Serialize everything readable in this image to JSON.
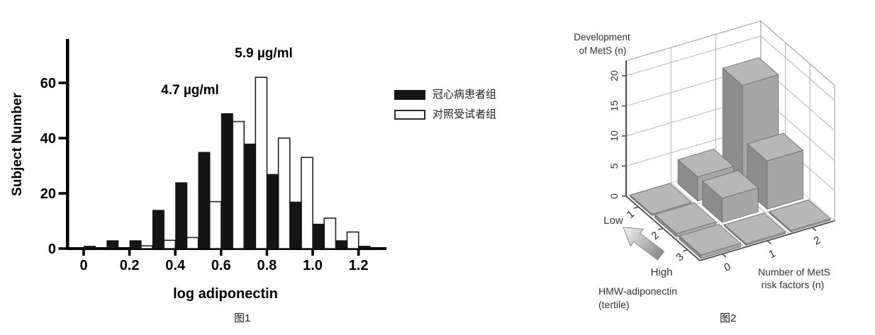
{
  "page": {
    "background": "#ffffff"
  },
  "chart_data": [
    {
      "type": "bar",
      "subtype": "grouped-histogram",
      "title": "",
      "xlabel": "log adiponectin",
      "ylabel": "Subject Number",
      "caption": "图1",
      "bin_start": 0.0,
      "bin_width": 0.1,
      "xticks": [
        "0",
        "0.2",
        "0.4",
        "0.6",
        "0.8",
        "1.0",
        "1.2"
      ],
      "xtick_values": [
        0,
        0.2,
        0.4,
        0.6,
        0.8,
        1.0,
        1.2
      ],
      "yticks": [
        "0",
        "20",
        "40",
        "60"
      ],
      "ytick_values": [
        0,
        20,
        40,
        60
      ],
      "ylim": [
        0,
        76
      ],
      "grid": false,
      "legend_position": "right",
      "series": [
        {
          "name": "冠心病患者组",
          "color": "#141414",
          "style": "solid",
          "values": [
            1,
            3,
            3,
            14,
            24,
            35,
            49,
            38,
            27,
            17,
            9,
            3,
            1
          ]
        },
        {
          "name": "对照受试者组",
          "color": "#ffffff",
          "style": "outline",
          "values": [
            0,
            0,
            1,
            3,
            4,
            17,
            46,
            62,
            40,
            33,
            11,
            6,
            0
          ]
        }
      ],
      "annotations": [
        {
          "text": "4.7 µg/ml",
          "points_to": "冠心病患者组 peak"
        },
        {
          "text": "5.9 µg/ml",
          "points_to": "对照受试者组 peak"
        }
      ]
    },
    {
      "type": "bar",
      "subtype": "bar3d",
      "title": "",
      "caption": "图2",
      "zlabel": "Development of MetS (n)",
      "zlabel_lines": [
        "Development",
        "of MetS (n)"
      ],
      "zticks": [
        "0",
        "5",
        "10",
        "15",
        "20"
      ],
      "ztick_values": [
        0,
        5,
        10,
        15,
        20
      ],
      "zlim": [
        0,
        22
      ],
      "xlabel": "Number of MetS risk factors (n)",
      "xlabel_lines": [
        "Number of MetS",
        "risk factors (n)"
      ],
      "xticks": [
        "0",
        "1",
        "2"
      ],
      "ylabel": "HMW-adiponectin (tertile)",
      "ylabel_lines": [
        "HMW-adiponectin",
        "(tertile)"
      ],
      "yticks": [
        "1",
        "2",
        "3"
      ],
      "y_direction_labels": {
        "near": "Low",
        "far": "High"
      },
      "bar_color": "#a6a6a6",
      "rows_by_tertile": [
        {
          "tertile": "1",
          "values": [
            0,
            4,
            17
          ]
        },
        {
          "tertile": "2",
          "values": [
            1,
            4,
            8
          ]
        },
        {
          "tertile": "3",
          "values": [
            1,
            0,
            0
          ]
        }
      ]
    }
  ]
}
